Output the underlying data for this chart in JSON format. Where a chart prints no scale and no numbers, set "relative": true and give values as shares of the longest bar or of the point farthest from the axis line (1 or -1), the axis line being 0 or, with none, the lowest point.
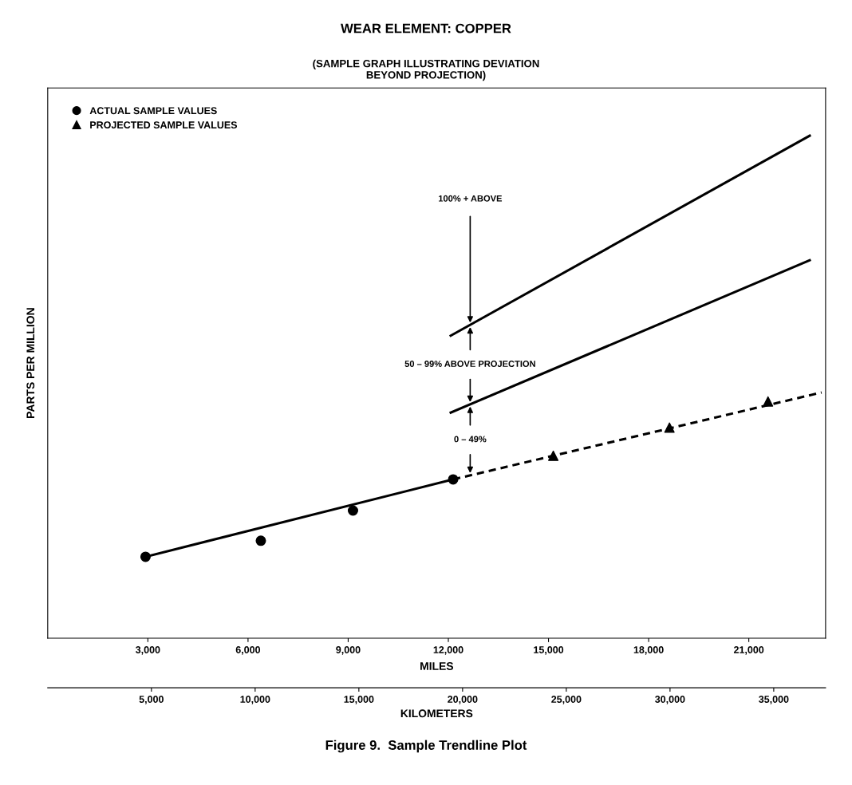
{
  "chart_data": {
    "type": "line",
    "title": "WEAR ELEMENT: COPPER",
    "subtitle": "(SAMPLE GRAPH ILLUSTRATING DEVIATION\nBEYOND PROJECTION)",
    "xlabel": "MILES",
    "x2label": "KILOMETERS",
    "ylabel": "PARTS PER MILLION",
    "relative": true,
    "xlim": [
      0,
      23300
    ],
    "xticks": [
      {
        "value": 3000,
        "label": "3,000"
      },
      {
        "value": 6000,
        "label": "6,000"
      },
      {
        "value": 9000,
        "label": "9,000"
      },
      {
        "value": 12000,
        "label": "12,000"
      },
      {
        "value": 15000,
        "label": "15,000"
      },
      {
        "value": 18000,
        "label": "18,000"
      },
      {
        "value": 21000,
        "label": "21,000"
      }
    ],
    "x2lim": [
      0,
      37500
    ],
    "x2ticks": [
      {
        "value": 5000,
        "label": "5,000"
      },
      {
        "value": 10000,
        "label": "10,000"
      },
      {
        "value": 15000,
        "label": "15,000"
      },
      {
        "value": 20000,
        "label": "20,000"
      },
      {
        "value": 25000,
        "label": "25,000"
      },
      {
        "value": 30000,
        "label": "30,000"
      },
      {
        "value": 35000,
        "label": "35,000"
      }
    ],
    "series": [
      {
        "name": "ACTUAL SAMPLE VALUES",
        "type": "scatter",
        "marker": "circle",
        "color": "#000000",
        "x": [
          2930,
          6384,
          9144,
          12144
        ],
        "values": [
          0.162,
          0.194,
          0.254,
          0.316
        ]
      },
      {
        "line_style": "solid",
        "color": "#000000",
        "x": [
          2930,
          12144
        ],
        "values": [
          0.162,
          0.316
        ]
      },
      {
        "name": "PROJECTED SAMPLE VALUES",
        "type": "scatter",
        "marker": "triangle",
        "color": "#000000",
        "x": [
          15144,
          18624,
          21576
        ],
        "values": [
          0.363,
          0.419,
          0.471
        ]
      },
      {
        "line_style": "dashed",
        "color": "#000000",
        "x": [
          12144,
          23180
        ],
        "values": [
          0.316,
          0.489
        ]
      },
      {
        "line_style": "solid",
        "color": "#000000",
        "x": [
          12072,
          22824
        ],
        "values": [
          0.602,
          1.0
        ]
      },
      {
        "line_style": "solid",
        "color": "#000000",
        "x": [
          12072,
          22824
        ],
        "values": [
          0.449,
          0.752
        ]
      }
    ],
    "annotations": [
      "100% + ABOVE",
      "50 – 99% ABOVE PROJECTION",
      "0 – 49%",
      "Figure 9.  Sample Trendline Plot"
    ],
    "legend": "top left",
    "grid": false
  }
}
